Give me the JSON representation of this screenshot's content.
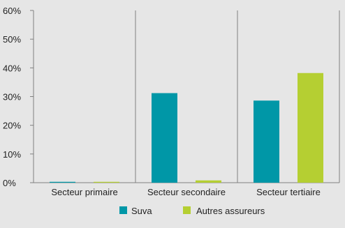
{
  "chart_data": {
    "type": "bar",
    "title": "",
    "xlabel": "",
    "ylabel": "",
    "categories": [
      "Secteur primaire",
      "Secteur secondaire",
      "Secteur tertiaire"
    ],
    "series": [
      {
        "name": "Suva",
        "values": [
          0.3,
          31.2,
          28.6
        ],
        "color": "#0097a7"
      },
      {
        "name": "Autres assureurs",
        "values": [
          0.3,
          0.8,
          38.2
        ],
        "color": "#b5cf32"
      }
    ],
    "ylim": [
      0,
      60
    ],
    "yticks": [
      0,
      10,
      20,
      30,
      40,
      50,
      60
    ],
    "ytick_labels": [
      "0%",
      "10%",
      "20%",
      "30%",
      "40%",
      "50%",
      "60%"
    ],
    "grid": "vertical category separators only",
    "legend_position": "bottom-center",
    "colors": {
      "background": "#e6e6e6",
      "axis": "#808080",
      "text": "#222222"
    }
  }
}
